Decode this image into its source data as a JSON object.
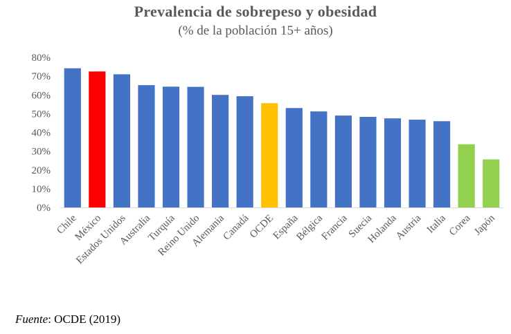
{
  "chart_data": {
    "type": "bar",
    "title": "Prevalencia de sobrepeso y obesidad",
    "subtitle": "(% de la población 15+ años)",
    "categories": [
      "Chile",
      "México",
      "Estados Unidos",
      "Australia",
      "Turquía",
      "Reino Unido",
      "Alemania",
      "Canadá",
      "OCDE",
      "España",
      "Bélgica",
      "Francia",
      "Suecia",
      "Holanda",
      "Austria",
      "Italia",
      "Corea",
      "Japón"
    ],
    "values": [
      74.2,
      72.5,
      71.0,
      65.2,
      64.4,
      64.3,
      60.0,
      59.3,
      55.6,
      53.0,
      51.2,
      49.0,
      48.3,
      47.5,
      46.8,
      46.0,
      33.7,
      25.6
    ],
    "colors": [
      "#4472C4",
      "#FF0000",
      "#4472C4",
      "#4472C4",
      "#4472C4",
      "#4472C4",
      "#4472C4",
      "#4472C4",
      "#FFC000",
      "#4472C4",
      "#4472C4",
      "#4472C4",
      "#4472C4",
      "#4472C4",
      "#4472C4",
      "#4472C4",
      "#92D050",
      "#92D050"
    ],
    "yticks": [
      "0%",
      "10%",
      "20%",
      "30%",
      "40%",
      "50%",
      "60%",
      "70%",
      "80%"
    ],
    "ylim": [
      0,
      80
    ],
    "xlabel": "",
    "ylabel": "",
    "grid": false,
    "legend": false
  },
  "source": {
    "label": "Fuente",
    "text": ": OCDE (2019)"
  }
}
